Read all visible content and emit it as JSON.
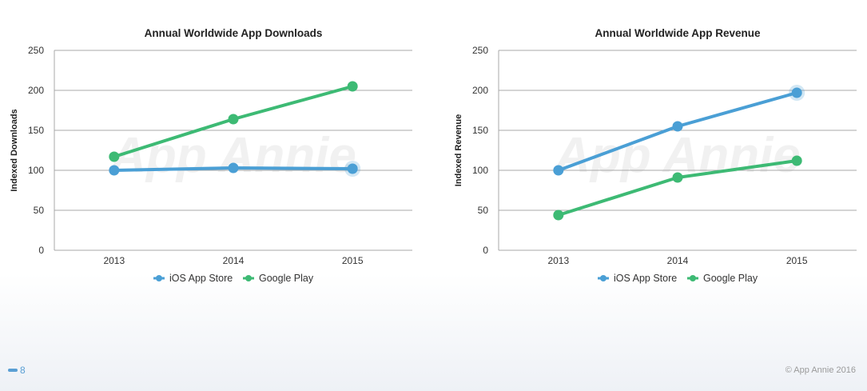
{
  "colors": {
    "ios": "#4a9fd5",
    "google": "#3dba74"
  },
  "chart_data": [
    {
      "type": "line",
      "title": "Annual Worldwide App Downloads",
      "ylabel": "Indexed Downloads",
      "xlabel": "",
      "categories": [
        "2013",
        "2014",
        "2015"
      ],
      "ylim": [
        0,
        250
      ],
      "yticks": [
        0,
        50,
        100,
        150,
        200,
        250
      ],
      "series": [
        {
          "name": "iOS App Store",
          "key": "ios",
          "values": [
            100,
            103,
            102
          ]
        },
        {
          "name": "Google Play",
          "key": "google",
          "values": [
            117,
            164,
            205
          ]
        }
      ],
      "watermark": "App Annie"
    },
    {
      "type": "line",
      "title": "Annual Worldwide App Revenue",
      "ylabel": "Indexed Revenue",
      "xlabel": "",
      "categories": [
        "2013",
        "2014",
        "2015"
      ],
      "ylim": [
        0,
        250
      ],
      "yticks": [
        0,
        50,
        100,
        150,
        200,
        250
      ],
      "series": [
        {
          "name": "iOS App Store",
          "key": "ios",
          "values": [
            100,
            155,
            197
          ]
        },
        {
          "name": "Google Play",
          "key": "google",
          "values": [
            44,
            91,
            112
          ]
        }
      ],
      "watermark": "App Annie"
    }
  ],
  "footer": {
    "page_number": "8",
    "copyright": "© App Annie 2016"
  }
}
